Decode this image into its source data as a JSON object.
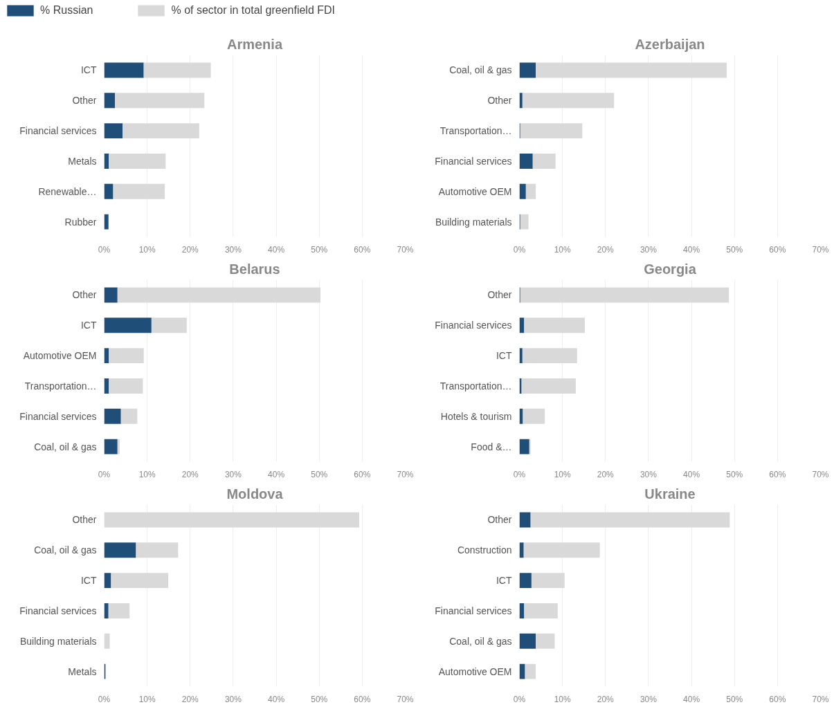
{
  "chart_data": [
    {
      "type": "bar",
      "orientation": "horizontal",
      "stacked": true,
      "title": "Armenia",
      "categories": [
        "ICT",
        "Other",
        "Financial services",
        "Metals",
        "Renewable…",
        "Rubber"
      ],
      "series": [
        {
          "name": "% Russian",
          "color": "#1f4e79",
          "values": [
            9.2,
            2.5,
            4.3,
            1.1,
            2.1,
            1.0
          ]
        },
        {
          "name": "% of sector in total greenfield FDI",
          "color": "#d9d9d9",
          "values": [
            15.6,
            20.8,
            17.8,
            13.2,
            12.0,
            0
          ]
        }
      ],
      "xlim": [
        0,
        70
      ],
      "xticks": [
        {
          "value": 0,
          "label": "0%"
        },
        {
          "value": 10,
          "label": "10%"
        },
        {
          "value": 20,
          "label": "20%"
        },
        {
          "value": 30,
          "label": "30%"
        },
        {
          "value": 40,
          "label": "40%"
        },
        {
          "value": 50,
          "label": "50%"
        },
        {
          "value": 60,
          "label": "60%"
        },
        {
          "value": 70,
          "label": "70%"
        }
      ],
      "grid": "x",
      "legend": "top left"
    },
    {
      "type": "bar",
      "orientation": "horizontal",
      "stacked": true,
      "title": "Azerbaijan",
      "categories": [
        "Coal, oil & gas",
        "Other",
        "Transportation…",
        "Financial services",
        "Automotive OEM",
        "Building materials"
      ],
      "series": [
        {
          "color": "#1f4e79",
          "values": [
            3.8,
            0.7,
            0.2,
            3.1,
            1.5,
            0.2
          ]
        },
        {
          "color": "#d9d9d9",
          "values": [
            44.4,
            21.3,
            14.4,
            5.3,
            2.3,
            1.9
          ]
        }
      ],
      "xlim": [
        0,
        70
      ],
      "xticks": [
        {
          "value": 0,
          "label": "0%"
        },
        {
          "value": 10,
          "label": "10%"
        },
        {
          "value": 20,
          "label": "20%"
        },
        {
          "value": 30,
          "label": "30%"
        },
        {
          "value": 40,
          "label": "40%"
        },
        {
          "value": 50,
          "label": "50%"
        },
        {
          "value": 60,
          "label": "60%"
        },
        {
          "value": 70,
          "label": "70%"
        }
      ],
      "grid": "x"
    },
    {
      "type": "bar",
      "orientation": "horizontal",
      "stacked": true,
      "title": "Belarus",
      "categories": [
        "Other",
        "ICT",
        "Automotive OEM",
        "Transportation…",
        "Financial services",
        "Coal, oil & gas"
      ],
      "series": [
        {
          "color": "#1f4e79",
          "values": [
            3.1,
            11.0,
            1.1,
            1.1,
            3.9,
            3.1
          ]
        },
        {
          "color": "#d9d9d9",
          "values": [
            47.2,
            8.2,
            8.1,
            7.9,
            3.8,
            0.5
          ]
        }
      ],
      "xlim": [
        0,
        70
      ],
      "xticks": [
        {
          "value": 0,
          "label": "0%"
        },
        {
          "value": 10,
          "label": "10%"
        },
        {
          "value": 20,
          "label": "20%"
        },
        {
          "value": 30,
          "label": "30%"
        },
        {
          "value": 40,
          "label": "40%"
        },
        {
          "value": 50,
          "label": "50%"
        },
        {
          "value": 60,
          "label": "60%"
        },
        {
          "value": 70,
          "label": "70%"
        }
      ],
      "grid": "x"
    },
    {
      "type": "bar",
      "orientation": "horizontal",
      "stacked": true,
      "title": "Georgia",
      "categories": [
        "Other",
        "Financial services",
        "ICT",
        "Transportation…",
        "Hotels & tourism",
        "Food &…"
      ],
      "series": [
        {
          "color": "#1f4e79",
          "values": [
            0.2,
            1.1,
            0.7,
            0.5,
            0.8,
            2.3
          ]
        },
        {
          "color": "#d9d9d9",
          "values": [
            48.5,
            14.1,
            12.7,
            12.6,
            5.1,
            0.3
          ]
        }
      ],
      "xlim": [
        0,
        70
      ],
      "xticks": [
        {
          "value": 0,
          "label": "0%"
        },
        {
          "value": 10,
          "label": "10%"
        },
        {
          "value": 20,
          "label": "20%"
        },
        {
          "value": 30,
          "label": "30%"
        },
        {
          "value": 40,
          "label": "40%"
        },
        {
          "value": 50,
          "label": "50%"
        },
        {
          "value": 60,
          "label": "60%"
        },
        {
          "value": 70,
          "label": "70%"
        }
      ],
      "grid": "x"
    },
    {
      "type": "bar",
      "orientation": "horizontal",
      "stacked": true,
      "title": "Moldova",
      "categories": [
        "Other",
        "Coal, oil & gas",
        "ICT",
        "Financial services",
        "Building materials",
        "Metals"
      ],
      "series": [
        {
          "color": "#1f4e79",
          "values": [
            0,
            7.4,
            1.6,
            1.0,
            0,
            0.3
          ]
        },
        {
          "color": "#d9d9d9",
          "values": [
            59.3,
            9.8,
            13.3,
            4.9,
            1.3,
            0
          ]
        }
      ],
      "xlim": [
        0,
        70
      ],
      "xticks": [
        {
          "value": 0,
          "label": "0%"
        },
        {
          "value": 10,
          "label": "10%"
        },
        {
          "value": 20,
          "label": "20%"
        },
        {
          "value": 30,
          "label": "30%"
        },
        {
          "value": 40,
          "label": "40%"
        },
        {
          "value": 50,
          "label": "50%"
        },
        {
          "value": 60,
          "label": "60%"
        },
        {
          "value": 70,
          "label": "70%"
        }
      ],
      "grid": "x"
    },
    {
      "type": "bar",
      "orientation": "horizontal",
      "stacked": true,
      "title": "Ukraine",
      "categories": [
        "Other",
        "Construction",
        "ICT",
        "Financial services",
        "Coal, oil & gas",
        "Automotive OEM"
      ],
      "series": [
        {
          "color": "#1f4e79",
          "values": [
            2.6,
            1.0,
            2.8,
            1.1,
            3.8,
            1.3
          ]
        },
        {
          "color": "#d9d9d9",
          "values": [
            46.3,
            17.7,
            7.7,
            7.8,
            4.4,
            2.5
          ]
        }
      ],
      "xlim": [
        0,
        70
      ],
      "xticks": [
        {
          "value": 0,
          "label": "0%"
        },
        {
          "value": 10,
          "label": "10%"
        },
        {
          "value": 20,
          "label": "20%"
        },
        {
          "value": 30,
          "label": "30%"
        },
        {
          "value": 40,
          "label": "40%"
        },
        {
          "value": 50,
          "label": "50%"
        },
        {
          "value": 60,
          "label": "60%"
        },
        {
          "value": 70,
          "label": "70%"
        }
      ],
      "grid": "x"
    }
  ]
}
